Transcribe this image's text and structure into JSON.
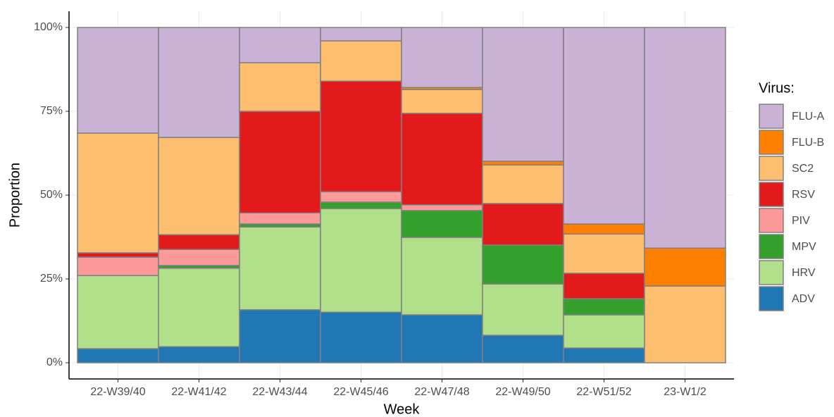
{
  "chart_data": {
    "type": "stacked-bar",
    "x_label": "Week",
    "y_label": "Proportion",
    "legend_title": "Virus:",
    "legend": "right",
    "categories": [
      "22-W39/40",
      "22-W41/42",
      "22-W43/44",
      "22-W45/46",
      "22-W47/48",
      "22-W49/50",
      "22-W51/52",
      "23-W1/2"
    ],
    "series": [
      {
        "name": "FLU-A",
        "color": "#cab2d6",
        "values": [
          31.5,
          32.8,
          10.5,
          4.0,
          17.9,
          39.9,
          58.6,
          65.8
        ]
      },
      {
        "name": "FLU-B",
        "color": "#ff7f00",
        "values": [
          0,
          0,
          0,
          0,
          0.6,
          1.1,
          3.0,
          11.3
        ]
      },
      {
        "name": "SC2",
        "color": "#fdbf6f",
        "values": [
          35.7,
          29.0,
          14.5,
          12.0,
          7.1,
          11.5,
          11.7,
          22.9
        ]
      },
      {
        "name": "RSV",
        "color": "#e31a1c",
        "values": [
          1.3,
          4.4,
          30.3,
          33.0,
          27.3,
          12.4,
          7.6,
          0
        ]
      },
      {
        "name": "PIV",
        "color": "#fb9a99",
        "values": [
          5.5,
          4.8,
          3.3,
          3.1,
          1.7,
          0,
          0,
          0
        ]
      },
      {
        "name": "MPV",
        "color": "#33a02c",
        "values": [
          0,
          0.8,
          0.9,
          1.9,
          8.0,
          11.6,
          4.8,
          0
        ]
      },
      {
        "name": "HRV",
        "color": "#b2df8a",
        "values": [
          21.8,
          23.4,
          24.7,
          30.9,
          23.1,
          15.3,
          9.9,
          0
        ]
      },
      {
        "name": "ADV",
        "color": "#1f78b4",
        "values": [
          4.2,
          4.8,
          15.8,
          15.1,
          14.3,
          8.2,
          4.4,
          0
        ]
      }
    ],
    "ylim": [
      0,
      100
    ],
    "yticks": [
      {
        "value": 0,
        "label": "0%"
      },
      {
        "value": 25,
        "label": "25%"
      },
      {
        "value": 50,
        "label": "50%"
      },
      {
        "value": 75,
        "label": "75%"
      },
      {
        "value": 100,
        "label": "100%"
      }
    ],
    "grid": true
  }
}
